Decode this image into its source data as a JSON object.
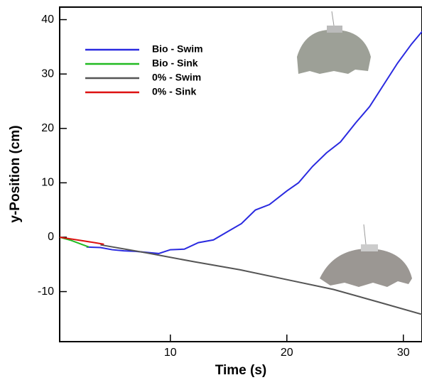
{
  "chart_data": {
    "type": "line",
    "xlabel": "Time (s)",
    "ylabel": "y-Position (cm)",
    "xlim": [
      0.5,
      31.6
    ],
    "ylim": [
      -19.2,
      42.3
    ],
    "xticks": [
      10,
      20,
      30
    ],
    "yticks": [
      -10,
      0,
      10,
      20,
      30,
      40
    ],
    "legend": "upper left",
    "series": [
      {
        "name": "Bio - Swim",
        "color": "#2a2ae0",
        "x": [
          2.8,
          4,
          5,
          6,
          7,
          8,
          9,
          10,
          11.2,
          12.4,
          13.7,
          14.9,
          16.1,
          17.3,
          18.5,
          20,
          21,
          22.2,
          23.4,
          24.6,
          25.9,
          27.1,
          28.3,
          29.5,
          30.7,
          31.6
        ],
        "values": [
          -1.8,
          -1.9,
          -2.3,
          -2.5,
          -2.6,
          -2.8,
          -3,
          -2.3,
          -2.2,
          -1,
          -0.5,
          1,
          2.5,
          5,
          6,
          8.5,
          10,
          13,
          15.5,
          17.5,
          21,
          24,
          28,
          32,
          35.5,
          37.8
        ]
      },
      {
        "name": "Bio - Sink",
        "color": "#22bb22",
        "x": [
          0.5,
          1.5,
          2.5,
          3
        ],
        "values": [
          0,
          -0.6,
          -1.4,
          -1.8
        ]
      },
      {
        "name": "0% - Swim",
        "color": "#555555",
        "x": [
          4,
          8,
          12,
          16,
          20,
          24,
          28,
          31.6
        ],
        "values": [
          -1.4,
          -2.9,
          -4.5,
          -6,
          -7.8,
          -9.6,
          -12,
          -14.2
        ]
      },
      {
        "name": "0% - Sink",
        "color": "#dd1111",
        "x": [
          0.5,
          2,
          3.5,
          4.3
        ],
        "values": [
          0,
          -0.5,
          -1,
          -1.3
        ]
      }
    ]
  }
}
